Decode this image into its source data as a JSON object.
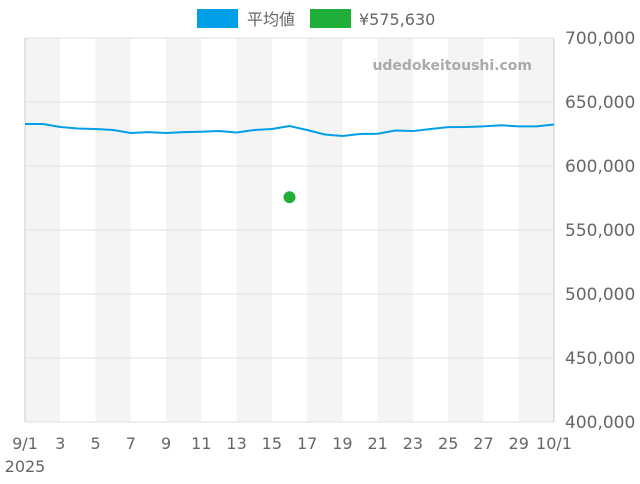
{
  "chart_data": {
    "type": "line",
    "title": "",
    "xlabel": "",
    "ylabel": "",
    "legend_position": "top",
    "watermark": "udedokeitoushi.com",
    "x_start": "2025-09-01",
    "x_end": "2025-10-01",
    "x_tick_labels": [
      "9/1",
      "3",
      "5",
      "7",
      "9",
      "11",
      "13",
      "15",
      "17",
      "19",
      "21",
      "23",
      "25",
      "27",
      "29",
      "10/1"
    ],
    "x_year_label": "2025",
    "ylim": [
      400000,
      700000
    ],
    "y_tick_labels": [
      "700,000",
      "650,000",
      "600,000",
      "550,000",
      "500,000",
      "450,000",
      "400,000"
    ],
    "y_ticks": [
      700000,
      650000,
      600000,
      550000,
      500000,
      450000,
      400000
    ],
    "grid": true,
    "colors": {
      "average": "#009fe8",
      "point": "#1faf38",
      "band": "#f4f4f4",
      "grid": "#e0e0e0"
    },
    "series": [
      {
        "name": "平均値",
        "type": "line",
        "dates": [
          "9/1",
          "9/2",
          "9/3",
          "9/4",
          "9/5",
          "9/6",
          "9/7",
          "9/8",
          "9/9",
          "9/10",
          "9/11",
          "9/12",
          "9/13",
          "9/14",
          "9/15",
          "9/16",
          "9/17",
          "9/18",
          "9/19",
          "9/20",
          "9/21",
          "9/22",
          "9/23",
          "9/24",
          "9/25",
          "9/26",
          "9/27",
          "9/28",
          "9/29",
          "9/30",
          "10/1"
        ],
        "values": [
          632800,
          632800,
          630500,
          629300,
          628900,
          628100,
          625800,
          626500,
          625800,
          626500,
          626800,
          627300,
          626200,
          628100,
          628900,
          631200,
          628100,
          624600,
          623400,
          625000,
          625200,
          627700,
          627300,
          628900,
          630400,
          630500,
          631000,
          631800,
          631000,
          631000,
          632400
        ]
      },
      {
        "name": "¥575,630",
        "type": "scatter",
        "dates": [
          "9/16"
        ],
        "values": [
          575630
        ]
      }
    ]
  }
}
